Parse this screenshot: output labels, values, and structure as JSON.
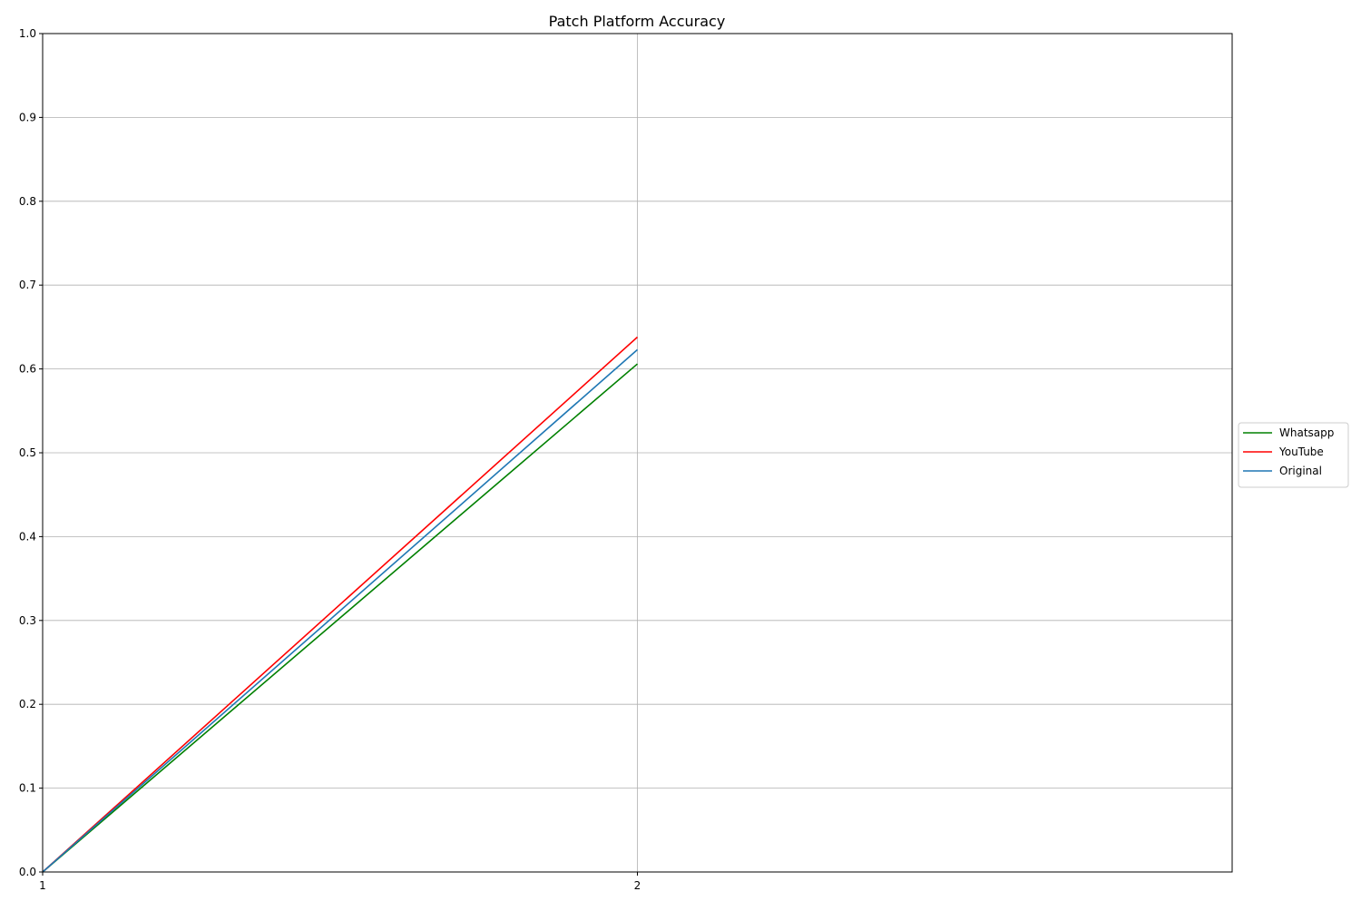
{
  "chart_data": {
    "type": "line",
    "title": "Patch Platform Accuracy",
    "xlabel": "",
    "ylabel": "",
    "x": [
      1,
      2
    ],
    "xlim": [
      1,
      3
    ],
    "xticks": [
      1,
      2
    ],
    "ylim": [
      0,
      1
    ],
    "yticks": [
      0.0,
      0.1,
      0.2,
      0.3,
      0.4,
      0.5,
      0.6,
      0.7,
      0.8,
      0.9,
      1.0
    ],
    "grid": true,
    "legend_position": "center-right outside",
    "series": [
      {
        "name": "Whatsapp",
        "color": "#008000",
        "values": [
          0.0,
          0.606
        ]
      },
      {
        "name": "YouTube",
        "color": "#ff0000",
        "values": [
          0.0,
          0.638
        ]
      },
      {
        "name": "Original",
        "color": "#1f77b4",
        "values": [
          0.0,
          0.623
        ]
      }
    ]
  }
}
